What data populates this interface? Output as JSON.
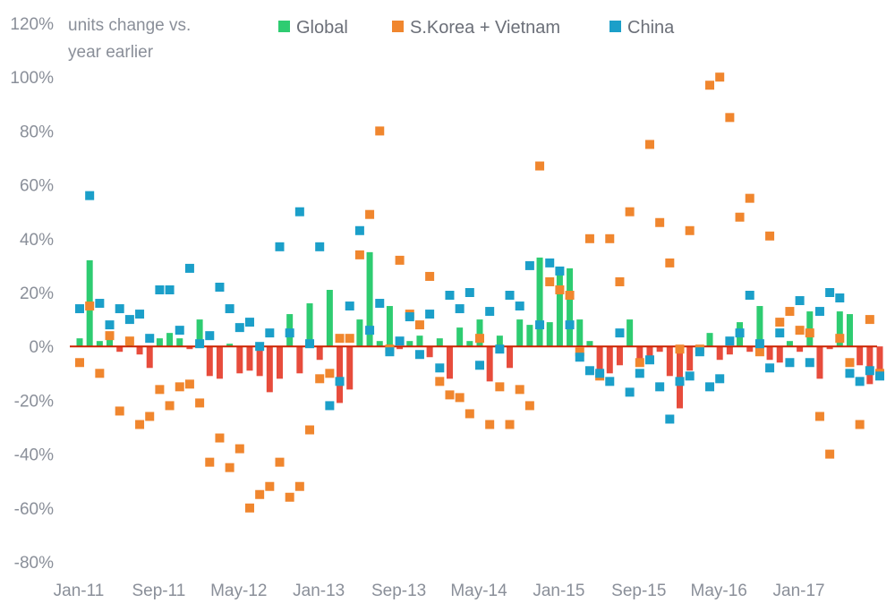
{
  "chart_data": {
    "type": "bar+scatter",
    "title": "",
    "ylabel_line1": "units change vs.",
    "ylabel_line2": "year earlier",
    "ylim": [
      -80,
      120
    ],
    "ytick_values": [
      -80,
      -60,
      -40,
      -20,
      0,
      20,
      40,
      60,
      80,
      100,
      120
    ],
    "ytick_labels": [
      "-80%",
      "-60%",
      "-40%",
      "-20%",
      "0%",
      "20%",
      "40%",
      "60%",
      "80%",
      "100%",
      "120%"
    ],
    "n_months": 81,
    "xtick_labels": [
      {
        "index": 0,
        "label": "Jan-11"
      },
      {
        "index": 8,
        "label": "Sep-11"
      },
      {
        "index": 16,
        "label": "May-12"
      },
      {
        "index": 24,
        "label": "Jan-13"
      },
      {
        "index": 32,
        "label": "Sep-13"
      },
      {
        "index": 40,
        "label": "May-14"
      },
      {
        "index": 48,
        "label": "Jan-15"
      },
      {
        "index": 56,
        "label": "Sep-15"
      },
      {
        "index": 64,
        "label": "May-16"
      },
      {
        "index": 72,
        "label": "Jan-17"
      }
    ],
    "colors": {
      "positive_bar": "#2ecc71",
      "negative_bar": "#e74c3c",
      "korea": "#f0862e",
      "china": "#1b9fc9",
      "zero_line": "#cc2200"
    },
    "series": [
      {
        "name": "Global",
        "kind": "bar",
        "values": [
          3,
          32,
          2,
          3,
          -2,
          3,
          -3,
          -8,
          3,
          5,
          3,
          -1,
          10,
          -11,
          -12,
          1,
          -10,
          -9,
          -11,
          -17,
          -12,
          12,
          -10,
          16,
          -5,
          21,
          -21,
          -16,
          10,
          35,
          2,
          15,
          -1,
          2,
          4,
          -4,
          3,
          -12,
          7,
          2,
          10,
          -13,
          4,
          -8,
          10,
          8,
          33,
          9,
          28,
          29,
          10,
          2,
          -12,
          -10,
          -7,
          10,
          -7,
          -6,
          -2,
          -11,
          -23,
          -9,
          -1,
          5,
          -5,
          -3,
          9,
          -2,
          15,
          -5,
          -6,
          2,
          -2,
          13,
          -12,
          -1,
          13,
          12,
          -7,
          -14,
          -10
        ]
      },
      {
        "name": "S.Korea + Vietnam",
        "kind": "scatter",
        "values": [
          -6,
          15,
          -10,
          4,
          -24,
          2,
          -29,
          -26,
          -16,
          -22,
          -15,
          -14,
          -21,
          -43,
          -34,
          -45,
          -38,
          -60,
          -55,
          -52,
          -43,
          -56,
          -52,
          -31,
          -12,
          -10,
          3,
          3,
          34,
          49,
          80,
          -1,
          32,
          12,
          8,
          26,
          -13,
          -18,
          -19,
          -25,
          3,
          -29,
          -15,
          -29,
          -16,
          -22,
          67,
          24,
          21,
          19,
          -2,
          40,
          -11,
          40,
          24,
          50,
          -6,
          75,
          46,
          31,
          -1,
          43,
          -1,
          97,
          100,
          85,
          48,
          55,
          -2,
          41,
          9,
          13,
          6,
          5,
          -26,
          -40,
          3,
          -6,
          -29,
          10,
          -10
        ]
      },
      {
        "name": "China",
        "kind": "scatter",
        "values": [
          14,
          56,
          16,
          8,
          14,
          10,
          12,
          3,
          21,
          21,
          6,
          29,
          1,
          4,
          22,
          14,
          7,
          9,
          0,
          5,
          37,
          5,
          50,
          1,
          37,
          -22,
          -13,
          15,
          43,
          6,
          16,
          -2,
          2,
          11,
          -3,
          12,
          -8,
          19,
          14,
          20,
          -7,
          13,
          -1,
          19,
          15,
          30,
          8,
          31,
          28,
          8,
          -4,
          -9,
          -10,
          -13,
          5,
          -17,
          -10,
          -5,
          -15,
          -27,
          -13,
          -11,
          -2,
          -15,
          -12,
          2,
          5,
          19,
          1,
          -8,
          5,
          -6,
          17,
          -6,
          13,
          20,
          18,
          -10,
          -13,
          -9,
          -11
        ]
      }
    ],
    "legend": [
      {
        "label": "Global",
        "color": "#2ecc71"
      },
      {
        "label": "S.Korea + Vietnam",
        "color": "#f0862e"
      },
      {
        "label": "China",
        "color": "#1b9fc9"
      }
    ],
    "legend_position": "top-center"
  }
}
